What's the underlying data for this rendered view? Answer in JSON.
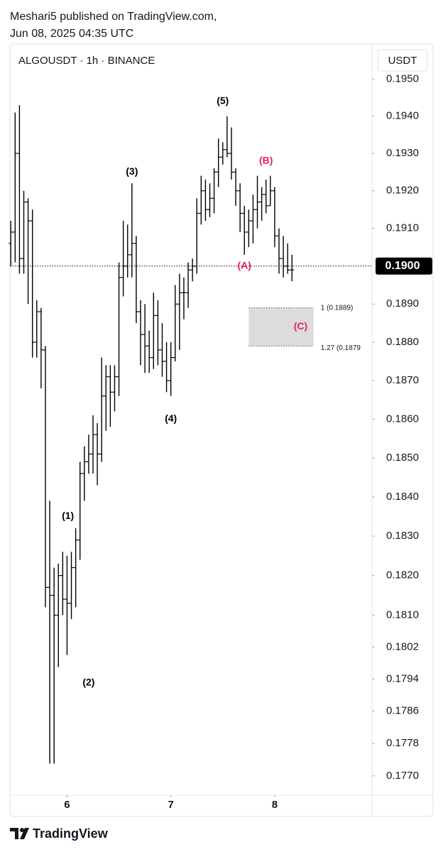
{
  "header": {
    "author_line": "Meshari5 published on TradingView.com,",
    "date_line": "Jun 08, 2025 04:35 UTC"
  },
  "footer": {
    "brand": "TradingView"
  },
  "chart_data": {
    "type": "ohlc",
    "title": "ALGOUSDT · 1h · BINANCE",
    "y_unit": "USDT",
    "log_scale": true,
    "grid": false,
    "color": "#000000",
    "x": [
      -13,
      -12,
      -11,
      -10,
      -9,
      -8,
      -7,
      -6,
      -5,
      -4,
      -3,
      -2,
      -1,
      0,
      1,
      2,
      3,
      4,
      5,
      6,
      7,
      8,
      9,
      10,
      11,
      12,
      13,
      14,
      15,
      16,
      17,
      18,
      19,
      20,
      21,
      22,
      23,
      24,
      25,
      26,
      27,
      28,
      29,
      30,
      31,
      32,
      33,
      34,
      35,
      36,
      37,
      38,
      39,
      40,
      41,
      42,
      43,
      44,
      45,
      46,
      47,
      48,
      49,
      50,
      51,
      52
    ],
    "open": [
      0.1906,
      0.1909,
      0.193,
      0.1902,
      0.1917,
      0.1912,
      0.188,
      0.1888,
      0.1878,
      0.1817,
      0.1815,
      0.181,
      0.182,
      0.1814,
      0.1813,
      0.1822,
      0.1829,
      0.1846,
      0.1849,
      0.1851,
      0.1856,
      0.1851,
      0.1866,
      0.1871,
      0.1867,
      0.1871,
      0.1897,
      0.19,
      0.1903,
      0.1906,
      0.1888,
      0.1882,
      0.1879,
      0.1876,
      0.1887,
      0.1878,
      0.1875,
      0.187,
      0.1876,
      0.189,
      0.1893,
      0.1893,
      0.1899,
      0.19,
      0.1914,
      0.192,
      0.1915,
      0.1918,
      0.1925,
      0.1929,
      0.1931,
      0.193,
      0.1925,
      0.192,
      0.1914,
      0.1909,
      0.1912,
      0.1915,
      0.1917,
      0.1919,
      0.1916,
      0.192,
      0.1908,
      0.1902,
      0.19,
      0.1899
    ],
    "high": [
      0.1912,
      0.1941,
      0.1943,
      0.192,
      0.1918,
      0.1915,
      0.1891,
      0.1889,
      0.1879,
      0.1839,
      0.1822,
      0.1823,
      0.1826,
      0.1825,
      0.1826,
      0.1832,
      0.1849,
      0.1853,
      0.1856,
      0.1861,
      0.1859,
      0.1876,
      0.1874,
      0.1874,
      0.1874,
      0.1901,
      0.1912,
      0.1911,
      0.1922,
      0.1908,
      0.1891,
      0.189,
      0.1883,
      0.1893,
      0.1891,
      0.1885,
      0.188,
      0.188,
      0.1895,
      0.1898,
      0.1897,
      0.1901,
      0.1902,
      0.1918,
      0.1924,
      0.1923,
      0.1922,
      0.1926,
      0.1934,
      0.1933,
      0.194,
      0.1937,
      0.1926,
      0.1922,
      0.1916,
      0.1915,
      0.1919,
      0.1924,
      0.1921,
      0.1923,
      0.1924,
      0.1921,
      0.191,
      0.1908,
      0.1906,
      0.1903
    ],
    "low": [
      0.19,
      0.1901,
      0.1898,
      0.1898,
      0.189,
      0.1876,
      0.1876,
      0.1868,
      0.1812,
      0.1773,
      0.1773,
      0.1797,
      0.181,
      0.18,
      0.1809,
      0.1812,
      0.1824,
      0.1839,
      0.1846,
      0.1846,
      0.1843,
      0.1849,
      0.1857,
      0.1858,
      0.1862,
      0.1866,
      0.1892,
      0.1897,
      0.1897,
      0.1885,
      0.1874,
      0.1872,
      0.1872,
      0.1873,
      0.1874,
      0.1871,
      0.1867,
      0.1866,
      0.1875,
      0.1878,
      0.1886,
      0.1889,
      0.1896,
      0.1898,
      0.1911,
      0.1912,
      0.1913,
      0.1914,
      0.1921,
      0.1927,
      0.1929,
      0.1923,
      0.1916,
      0.1909,
      0.1903,
      0.1905,
      0.1906,
      0.191,
      0.1912,
      0.1914,
      0.1916,
      0.1905,
      0.1898,
      0.1897,
      0.1898,
      0.1896
    ],
    "close": [
      0.1909,
      0.193,
      0.1902,
      0.1917,
      0.1912,
      0.188,
      0.1888,
      0.1878,
      0.1817,
      0.1815,
      0.181,
      0.182,
      0.1814,
      0.1813,
      0.1822,
      0.1829,
      0.1846,
      0.1849,
      0.1851,
      0.1856,
      0.1851,
      0.1866,
      0.1871,
      0.1867,
      0.1871,
      0.1897,
      0.19,
      0.1903,
      0.1906,
      0.1888,
      0.1882,
      0.1879,
      0.1876,
      0.1887,
      0.1878,
      0.1875,
      0.187,
      0.1876,
      0.189,
      0.1893,
      0.1893,
      0.1899,
      0.19,
      0.1914,
      0.192,
      0.1915,
      0.1918,
      0.1925,
      0.1929,
      0.1931,
      0.193,
      0.1925,
      0.192,
      0.1914,
      0.1909,
      0.1912,
      0.1915,
      0.1917,
      0.1919,
      0.1916,
      0.192,
      0.1908,
      0.1902,
      0.19,
      0.1899,
      0.1899
    ],
    "xlim": [
      -13.2,
      70.5
    ],
    "xticks": [
      {
        "value": 0,
        "label": "6"
      },
      {
        "value": 24,
        "label": "7"
      },
      {
        "value": 48,
        "label": "8"
      }
    ],
    "ylim": [
      0.1767,
      0.1959
    ],
    "yticks": [
      {
        "value": 0.195,
        "label": "0.1950"
      },
      {
        "value": 0.194,
        "label": "0.1940"
      },
      {
        "value": 0.193,
        "label": "0.1930"
      },
      {
        "value": 0.192,
        "label": "0.1920"
      },
      {
        "value": 0.191,
        "label": "0.1910"
      },
      {
        "value": 0.189,
        "label": "0.1890"
      },
      {
        "value": 0.188,
        "label": "0.1880"
      },
      {
        "value": 0.187,
        "label": "0.1870"
      },
      {
        "value": 0.186,
        "label": "0.1860"
      },
      {
        "value": 0.185,
        "label": "0.1850"
      },
      {
        "value": 0.184,
        "label": "0.1840"
      },
      {
        "value": 0.183,
        "label": "0.1830"
      },
      {
        "value": 0.182,
        "label": "0.1820"
      },
      {
        "value": 0.181,
        "label": "0.1810"
      },
      0.1802,
      0.1794,
      0.1786,
      0.1778,
      {
        "value": 0.177,
        "label": "0.1770"
      }
    ],
    "price_line": {
      "value": 0.19,
      "label": "0.1900"
    },
    "fib_box": {
      "x_range": [
        42,
        57
      ],
      "color": "#dcdcdc",
      "levels": [
        {
          "value": 0.1889,
          "label": "1 (0.1889)"
        },
        {
          "value": 0.1879,
          "label": "1.27 (0.1879"
        }
      ]
    },
    "annotations": [
      {
        "text": "(1)",
        "x": 0.2,
        "y": 0.1835,
        "color": "#000000"
      },
      {
        "text": "(2)",
        "x": 5,
        "y": 0.1793,
        "color": "#000000"
      },
      {
        "text": "(3)",
        "x": 15,
        "y": 0.1925,
        "color": "#000000"
      },
      {
        "text": "(4)",
        "x": 24,
        "y": 0.186,
        "color": "#000000"
      },
      {
        "text": "(5)",
        "x": 36,
        "y": 0.1944,
        "color": "#000000"
      },
      {
        "text": "(A)",
        "x": 41,
        "y": 0.19,
        "color": "#e91e63"
      },
      {
        "text": "(B)",
        "x": 46,
        "y": 0.1928,
        "color": "#e91e63"
      },
      {
        "text": "(C)",
        "x": 54,
        "y": 0.1884,
        "color": "#e91e63"
      }
    ]
  }
}
